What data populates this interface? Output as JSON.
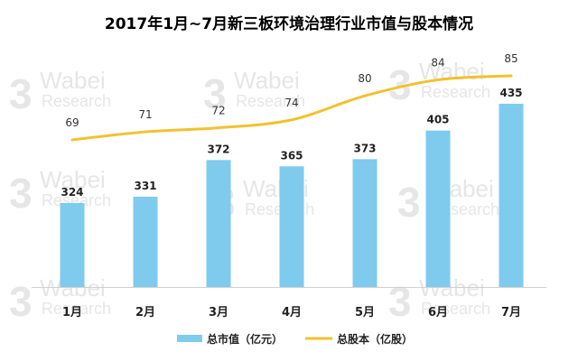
{
  "chart_data": {
    "type": "bar+line",
    "title": "2017年1月~7月新三板环境治理行业市值与股本情况",
    "categories": [
      "1月",
      "2月",
      "3月",
      "4月",
      "5月",
      "6月",
      "7月"
    ],
    "series": [
      {
        "name": "总市值（亿元）",
        "type": "bar",
        "values": [
          324,
          331,
          372,
          365,
          373,
          405,
          435
        ],
        "color": "#7ecbee"
      },
      {
        "name": "总股本（亿股）",
        "type": "line",
        "values": [
          69,
          71,
          72,
          74,
          80,
          84,
          85
        ],
        "color": "#f2c12e"
      }
    ],
    "bar_axis_range": [
      230,
      440
    ],
    "line_axis_range": [
      25,
      85
    ],
    "grid": false,
    "legend_position": "bottom"
  },
  "watermark": {
    "brand": "Wabei",
    "sub": "Research",
    "logo": "3"
  }
}
